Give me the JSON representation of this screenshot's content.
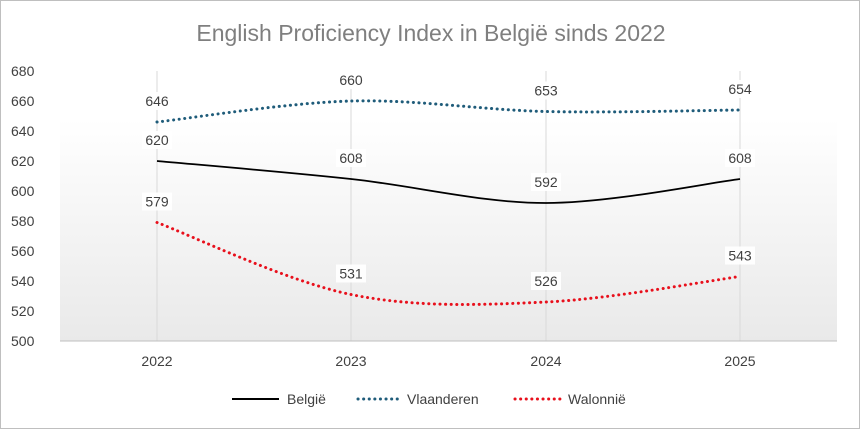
{
  "chart_data": {
    "type": "line",
    "title": "English Proficiency Index in België sinds 2022",
    "categories": [
      "2022",
      "2023",
      "2024",
      "2025"
    ],
    "ylim": [
      500,
      680
    ],
    "yticks": [
      500,
      520,
      540,
      560,
      580,
      600,
      620,
      640,
      660,
      680
    ],
    "grid": "vertical",
    "legend_position": "bottom",
    "series": [
      {
        "name": "België",
        "values": [
          620,
          608,
          592,
          608
        ],
        "color": "#000000",
        "style": "solid"
      },
      {
        "name": "Vlaanderen",
        "values": [
          646,
          660,
          653,
          654
        ],
        "color": "#1f5c7a",
        "style": "dotted"
      },
      {
        "name": "Walonnië",
        "values": [
          579,
          531,
          526,
          543
        ],
        "color": "#e8101c",
        "style": "dotted"
      }
    ]
  }
}
